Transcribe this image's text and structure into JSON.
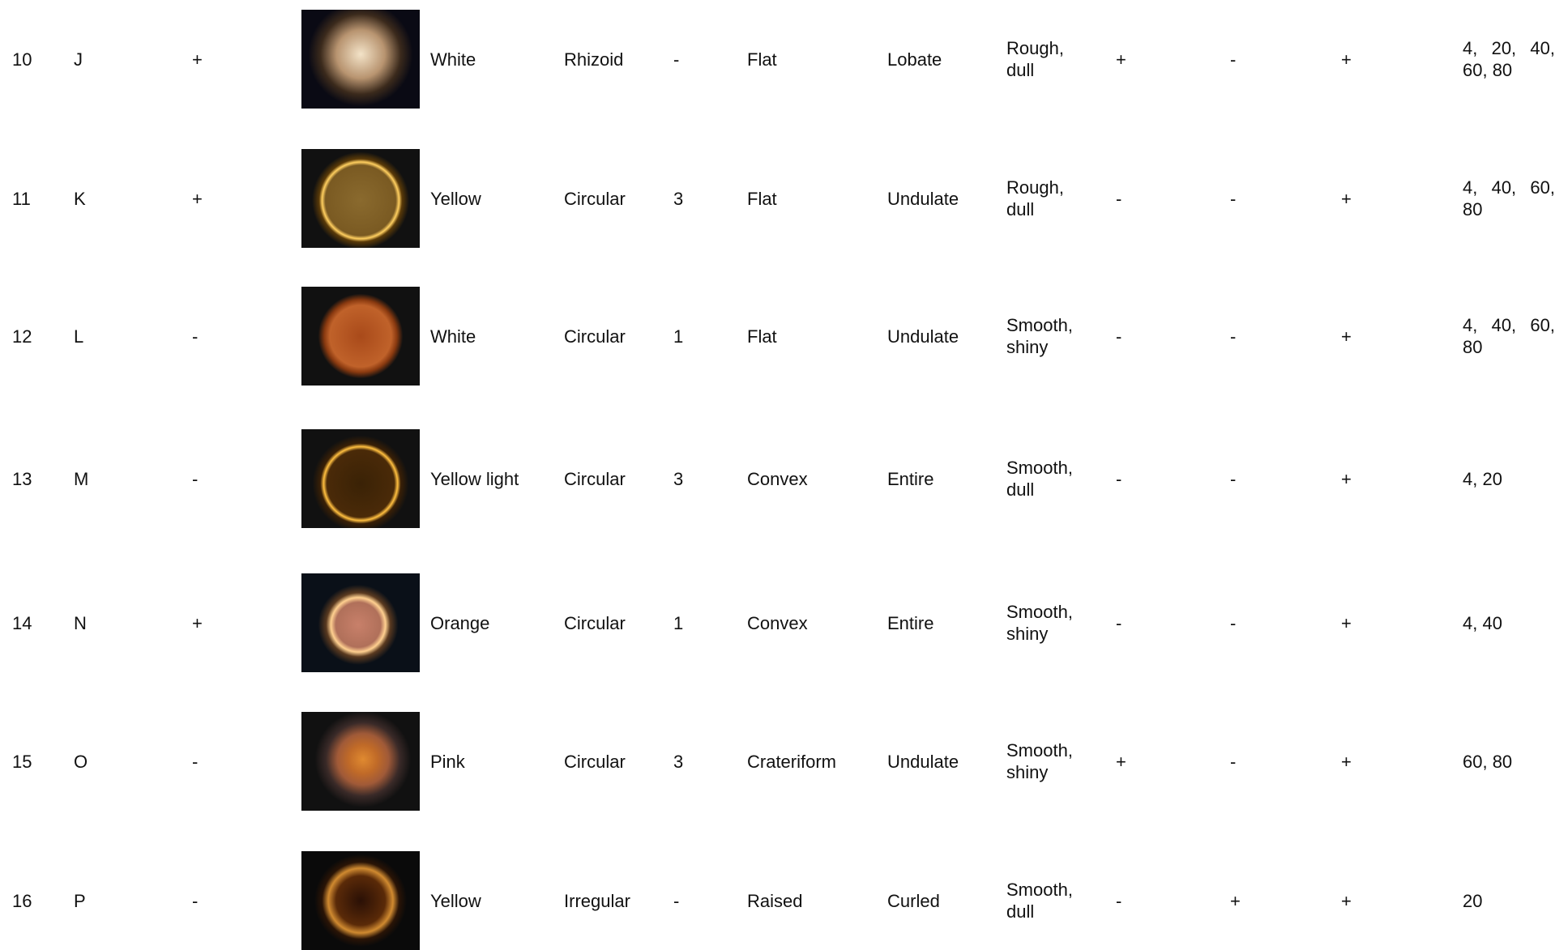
{
  "table": {
    "rows": [
      [
        "10",
        "J",
        "+",
        "White",
        "Rhizoid",
        "-",
        "Flat",
        "Lobate",
        "Rough, dull",
        "+",
        "-",
        "+",
        "4, 20, 40, 60, 80"
      ],
      [
        "11",
        "K",
        "+",
        "Yellow",
        "Circular",
        "3",
        "Flat",
        "Undulate",
        "Rough, dull",
        "-",
        "-",
        "+",
        "4, 40, 60, 80"
      ],
      [
        "12",
        "L",
        "-",
        "White",
        "Circular",
        "1",
        "Flat",
        "Undulate",
        "Smooth, shiny",
        "-",
        "-",
        "+",
        "4, 40, 60, 80"
      ],
      [
        "13",
        "M",
        "-",
        "Yellow light",
        "Circular",
        "3",
        "Convex",
        "Entire",
        "Smooth, dull",
        "-",
        "-",
        "+",
        "4, 20"
      ],
      [
        "14",
        "N",
        "+",
        "Orange",
        "Circular",
        "1",
        "Convex",
        "Entire",
        "Smooth, shiny",
        "-",
        "-",
        "+",
        "4, 40"
      ],
      [
        "15",
        "O",
        "-",
        "Pink",
        "Circular",
        "3",
        "Crateriform",
        "Undulate",
        "Smooth, shiny",
        "+",
        "-",
        "+",
        "60, 80"
      ],
      [
        "16",
        "P",
        "-",
        "Yellow",
        "Irregular",
        "-",
        "Raised",
        "Curled",
        "Smooth, dull",
        "-",
        "+",
        "+",
        "20"
      ]
    ]
  }
}
